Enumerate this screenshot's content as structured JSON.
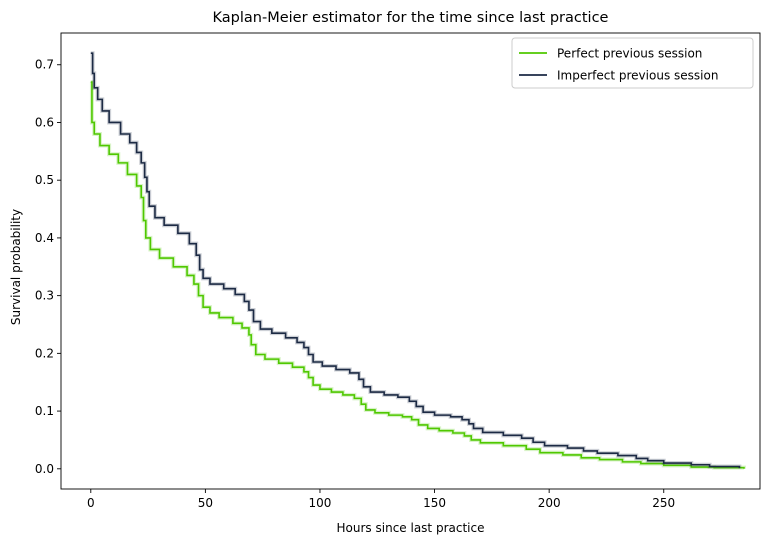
{
  "chart_data": {
    "type": "line",
    "title": "Kaplan-Meier estimator for the time since last practice",
    "xlabel": "Hours since last practice",
    "ylabel": "Survival probability",
    "xlim": [
      -13,
      292
    ],
    "ylim": [
      -0.035,
      0.755
    ],
    "xticks": [
      0,
      50,
      100,
      150,
      200,
      250
    ],
    "yticks": [
      0.0,
      0.1,
      0.2,
      0.3,
      0.4,
      0.5,
      0.6,
      0.7
    ],
    "legend_position": "upper right",
    "grid": false,
    "series": [
      {
        "name": "Perfect previous session",
        "color": "#4fc800",
        "points": [
          [
            0,
            0.67
          ],
          [
            0.5,
            0.67
          ],
          [
            0.5,
            0.6
          ],
          [
            1.5,
            0.6
          ],
          [
            1.5,
            0.58
          ],
          [
            4,
            0.56
          ],
          [
            8,
            0.545
          ],
          [
            12,
            0.53
          ],
          [
            16,
            0.51
          ],
          [
            20,
            0.49
          ],
          [
            22,
            0.47
          ],
          [
            23,
            0.43
          ],
          [
            24,
            0.4
          ],
          [
            26,
            0.38
          ],
          [
            30,
            0.365
          ],
          [
            36,
            0.35
          ],
          [
            42,
            0.335
          ],
          [
            45,
            0.32
          ],
          [
            47,
            0.3
          ],
          [
            49,
            0.28
          ],
          [
            52,
            0.27
          ],
          [
            56,
            0.262
          ],
          [
            62,
            0.252
          ],
          [
            66,
            0.244
          ],
          [
            69,
            0.232
          ],
          [
            70,
            0.215
          ],
          [
            72,
            0.198
          ],
          [
            76,
            0.19
          ],
          [
            82,
            0.183
          ],
          [
            88,
            0.176
          ],
          [
            93,
            0.168
          ],
          [
            95,
            0.158
          ],
          [
            97,
            0.145
          ],
          [
            100,
            0.138
          ],
          [
            105,
            0.133
          ],
          [
            110,
            0.128
          ],
          [
            115,
            0.122
          ],
          [
            118,
            0.112
          ],
          [
            120,
            0.102
          ],
          [
            124,
            0.097
          ],
          [
            130,
            0.093
          ],
          [
            136,
            0.09
          ],
          [
            140,
            0.085
          ],
          [
            143,
            0.076
          ],
          [
            147,
            0.07
          ],
          [
            152,
            0.066
          ],
          [
            158,
            0.062
          ],
          [
            163,
            0.057
          ],
          [
            166,
            0.05
          ],
          [
            170,
            0.045
          ],
          [
            180,
            0.04
          ],
          [
            190,
            0.034
          ],
          [
            196,
            0.028
          ],
          [
            206,
            0.024
          ],
          [
            214,
            0.019
          ],
          [
            222,
            0.016
          ],
          [
            232,
            0.012
          ],
          [
            240,
            0.009
          ],
          [
            250,
            0.006
          ],
          [
            262,
            0.003
          ],
          [
            272,
            0.002
          ],
          [
            285,
            0.0
          ]
        ]
      },
      {
        "name": "Imperfect previous session",
        "color": "#1c2a44",
        "points": [
          [
            0,
            0.72
          ],
          [
            0.8,
            0.72
          ],
          [
            0.8,
            0.685
          ],
          [
            1.5,
            0.66
          ],
          [
            3,
            0.64
          ],
          [
            5,
            0.62
          ],
          [
            8,
            0.6
          ],
          [
            13,
            0.58
          ],
          [
            17,
            0.565
          ],
          [
            20,
            0.548
          ],
          [
            22,
            0.53
          ],
          [
            23.5,
            0.505
          ],
          [
            24.5,
            0.48
          ],
          [
            25.5,
            0.455
          ],
          [
            28,
            0.435
          ],
          [
            32,
            0.422
          ],
          [
            38,
            0.408
          ],
          [
            43,
            0.39
          ],
          [
            46,
            0.37
          ],
          [
            47.5,
            0.345
          ],
          [
            49,
            0.33
          ],
          [
            52,
            0.32
          ],
          [
            58,
            0.312
          ],
          [
            63,
            0.302
          ],
          [
            67,
            0.29
          ],
          [
            69,
            0.275
          ],
          [
            71,
            0.255
          ],
          [
            74,
            0.242
          ],
          [
            79,
            0.235
          ],
          [
            85,
            0.227
          ],
          [
            90,
            0.219
          ],
          [
            93,
            0.21
          ],
          [
            95,
            0.198
          ],
          [
            97,
            0.185
          ],
          [
            101,
            0.178
          ],
          [
            107,
            0.172
          ],
          [
            113,
            0.166
          ],
          [
            117,
            0.155
          ],
          [
            119,
            0.142
          ],
          [
            122,
            0.133
          ],
          [
            128,
            0.128
          ],
          [
            134,
            0.124
          ],
          [
            139,
            0.117
          ],
          [
            142,
            0.108
          ],
          [
            145,
            0.098
          ],
          [
            150,
            0.093
          ],
          [
            157,
            0.09
          ],
          [
            162,
            0.085
          ],
          [
            165,
            0.078
          ],
          [
            167,
            0.07
          ],
          [
            171,
            0.063
          ],
          [
            180,
            0.058
          ],
          [
            188,
            0.053
          ],
          [
            193,
            0.046
          ],
          [
            198,
            0.04
          ],
          [
            208,
            0.036
          ],
          [
            215,
            0.031
          ],
          [
            221,
            0.027
          ],
          [
            230,
            0.023
          ],
          [
            238,
            0.018
          ],
          [
            243,
            0.014
          ],
          [
            250,
            0.01
          ],
          [
            262,
            0.007
          ],
          [
            270,
            0.004
          ],
          [
            283,
            0.001
          ]
        ]
      }
    ]
  }
}
